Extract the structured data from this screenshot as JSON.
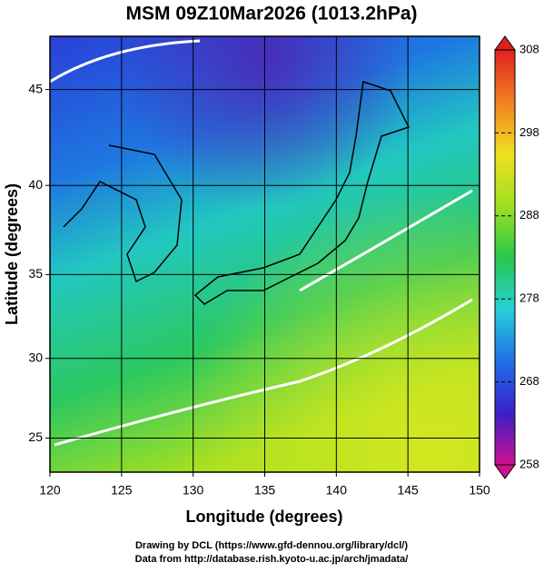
{
  "chart_data": {
    "type": "map",
    "title": "MSM 09Z10Mar2026 (1013.2hPa)",
    "x_label": "Longitude (degrees)",
    "y_label": "Latitude  (degrees)",
    "projection": "mercator",
    "xlim": [
      120,
      150
    ],
    "xticks": [
      120,
      125,
      130,
      135,
      140,
      145,
      150
    ],
    "ylim": [
      22.8,
      47.6
    ],
    "yticks": [
      25,
      30,
      35,
      40,
      45
    ],
    "grid": true,
    "colorbar": {
      "lim": [
        258,
        308
      ],
      "ticks": [
        258,
        268,
        278,
        288,
        298,
        308
      ],
      "colors": [
        "#d0108f",
        "#3a20c8",
        "#1f6fe8",
        "#27d0d8",
        "#27c84a",
        "#9ee021",
        "#f0e020",
        "#f08020",
        "#e02020"
      ]
    },
    "footer": [
      "Drawing by DCL (https://www.gfd-dennou.org/library/dcl/)",
      "Data from http://database.rish.kyoto-u.ac.jp/arch/jmadata/"
    ]
  }
}
